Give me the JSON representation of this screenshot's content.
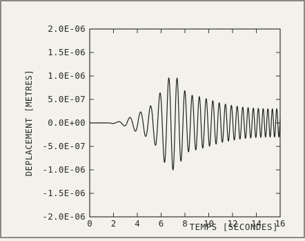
{
  "chart_data": {
    "type": "line",
    "title": "",
    "xlabel": "TEMPS [SECONDES]",
    "ylabel": "DEPLACEMENT [METRES]",
    "xlim": [
      0,
      16
    ],
    "ylim": [
      -2e-06,
      2e-06
    ],
    "x_ticks": [
      0,
      2,
      4,
      6,
      8,
      10,
      12,
      14,
      16
    ],
    "x_tick_labels": [
      "0",
      "2",
      "4",
      "6",
      "8",
      "10",
      "12",
      "14",
      "16"
    ],
    "y_ticks": [
      2e-06,
      1.5e-06,
      1e-06,
      5e-07,
      0,
      -5e-07,
      -1e-06,
      -1.5e-06,
      -2e-06
    ],
    "y_tick_labels": [
      "2.0E-06",
      "1.5E-06",
      "1.0E-06",
      "5.0E-07",
      "0.0E+00",
      "-5.0E-07",
      "-1.0E-06",
      "-1.5E-06",
      "-2.0E-06"
    ],
    "grid": false,
    "series": [
      {
        "x": [
          0,
          1.5,
          2.3,
          2.8,
          3.2,
          3.6,
          4.0,
          4.4,
          4.8,
          5.2,
          5.6,
          6.0,
          6.3,
          6.6,
          6.9,
          7.2,
          7.5,
          7.8,
          8.1,
          8.4,
          8.8,
          9.2,
          9.6,
          10.0,
          11.0,
          12.0,
          13.0,
          14.0,
          15.0,
          16.0
        ],
        "y": [
          0,
          0,
          2e-08,
          5e-08,
          1e-07,
          1.4e-07,
          2e-07,
          2.5e-07,
          3e-07,
          3.8e-07,
          5e-07,
          6.8e-07,
          8.5e-07,
          9.5e-07,
          1e-06,
          1e-06,
          9e-07,
          7.5e-07,
          6.5e-07,
          6e-07,
          5.8e-07,
          5.6e-07,
          5.3e-07,
          5e-07,
          4.2e-07,
          3.7e-07,
          3.3e-07,
          3.1e-07,
          3e-07,
          3e-07
        ]
      }
    ]
  }
}
